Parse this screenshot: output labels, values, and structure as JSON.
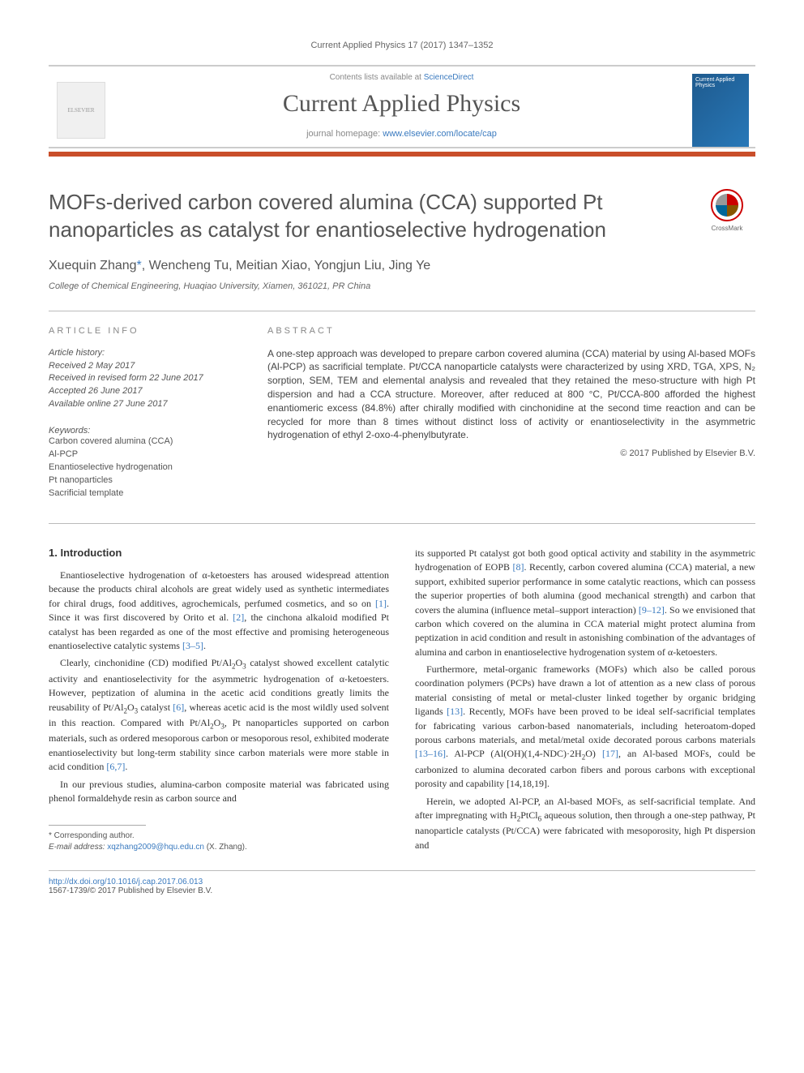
{
  "journal_ref": "Current Applied Physics 17 (2017) 1347–1352",
  "header": {
    "contents_prefix": "Contents lists available at ",
    "sd_text": "ScienceDirect",
    "journal_name": "Current Applied Physics",
    "homepage_prefix": "journal homepage: ",
    "homepage_url": "www.elsevier.com/locate/cap",
    "cover_text": "Current Applied Physics"
  },
  "crossmark_label": "CrossMark",
  "title": "MOFs-derived carbon covered alumina (CCA) supported Pt nanoparticles as catalyst for enantioselective hydrogenation",
  "authors_html": "Xuequin Zhang<span class='corr-mark'>*</span>, Wencheng Tu, Meitian Xiao, Yongjun Liu, Jing Ye",
  "affiliation": "College of Chemical Engineering, Huaqiao University, Xiamen, 361021, PR China",
  "article_info_label": "ARTICLE INFO",
  "abstract_label": "ABSTRACT",
  "history": {
    "label": "Article history:",
    "received": "Received 2 May 2017",
    "revised": "Received in revised form 22 June 2017",
    "accepted": "Accepted 26 June 2017",
    "online": "Available online 27 June 2017"
  },
  "keywords": {
    "label": "Keywords:",
    "items": [
      "Carbon covered alumina (CCA)",
      "Al-PCP",
      "Enantioselective hydrogenation",
      "Pt nanoparticles",
      "Sacrificial template"
    ]
  },
  "abstract": "A one-step approach was developed to prepare carbon covered alumina (CCA) material by using Al-based MOFs (Al-PCP) as sacrificial template. Pt/CCA nanoparticle catalysts were characterized by using XRD, TGA, XPS, N₂ sorption, SEM, TEM and elemental analysis and revealed that they retained the meso-structure with high Pt dispersion and had a CCA structure. Moreover, after reduced at 800 °C, Pt/CCA-800 afforded the highest enantiomeric excess (84.8%) after chirally modified with cinchonidine at the second time reaction and can be recycled for more than 8 times without distinct loss of activity or enantioselectivity in the asymmetric hydrogenation of ethyl 2-oxo-4-phenylbutyrate.",
  "copyright": "© 2017 Published by Elsevier B.V.",
  "intro_head": "1. Introduction",
  "intro_p1": "Enantioselective hydrogenation of α-ketoesters has aroused widespread attention because the products chiral alcohols are great widely used as synthetic intermediates for chiral drugs, food additives, agrochemicals, perfumed cosmetics, and so on [1]. Since it was first discovered by Orito et al. [2], the cinchona alkaloid modified Pt catalyst has been regarded as one of the most effective and promising heterogeneous enantioselective catalytic systems [3–5].",
  "intro_p2": "Clearly, cinchonidine (CD) modified Pt/Al₂O₃ catalyst showed excellent catalytic activity and enantioselectivity for the asymmetric hydrogenation of α-ketoesters. However, peptization of alumina in the acetic acid conditions greatly limits the reusability of Pt/Al₂O₃ catalyst [6], whereas acetic acid is the most wildly used solvent in this reaction. Compared with Pt/Al₂O₃, Pt nanoparticles supported on carbon materials, such as ordered mesoporous carbon or mesoporous resol, exhibited moderate enantioselectivity but long-term stability since carbon materials were more stable in acid condition [6,7].",
  "intro_p3": "In our previous studies, alumina-carbon composite material was fabricated using phenol formaldehyde resin as carbon source and",
  "intro_p4": "its supported Pt catalyst got both good optical activity and stability in the asymmetric hydrogenation of EOPB [8]. Recently, carbon covered alumina (CCA) material, a new support, exhibited superior performance in some catalytic reactions, which can possess the superior properties of both alumina (good mechanical strength) and carbon that covers the alumina (influence metal–support interaction) [9–12]. So we envisioned that carbon which covered on the alumina in CCA material might protect alumina from peptization in acid condition and result in astonishing combination of the advantages of alumina and carbon in enantioselective hydrogenation system of α-ketoesters.",
  "intro_p5": "Furthermore, metal-organic frameworks (MOFs) which also be called porous coordination polymers (PCPs) have drawn a lot of attention as a new class of porous material consisting of metal or metal-cluster linked together by organic bridging ligands [13]. Recently, MOFs have been proved to be ideal self-sacrificial templates for fabricating various carbon-based nanomaterials, including heteroatom-doped porous carbons materials, and metal/metal oxide decorated porous carbons materials [13–16]. Al-PCP (Al(OH)(1,4-NDC)·2H₂O) [17], an Al-based MOFs, could be carbonized to alumina decorated carbon fibers and porous carbons with exceptional porosity and capability [14,18,19].",
  "intro_p6": "Herein, we adopted Al-PCP, an Al-based MOFs, as self-sacrificial template. And after impregnating with H₂PtCl₆ aqueous solution, then through a one-step pathway, Pt nanoparticle catalysts (Pt/CCA) were fabricated with mesoporosity, high Pt dispersion and",
  "footnote": {
    "corr": "* Corresponding author.",
    "email_label": "E-mail address: ",
    "email": "xqzhang2009@hqu.edu.cn",
    "email_suffix": " (X. Zhang)."
  },
  "doi": "http://dx.doi.org/10.1016/j.cap.2017.06.013",
  "issn": "1567-1739/© 2017 Published by Elsevier B.V.",
  "colors": {
    "link": "#3a7abf",
    "accent_bar": "#c94e2a",
    "header_text": "#555"
  }
}
